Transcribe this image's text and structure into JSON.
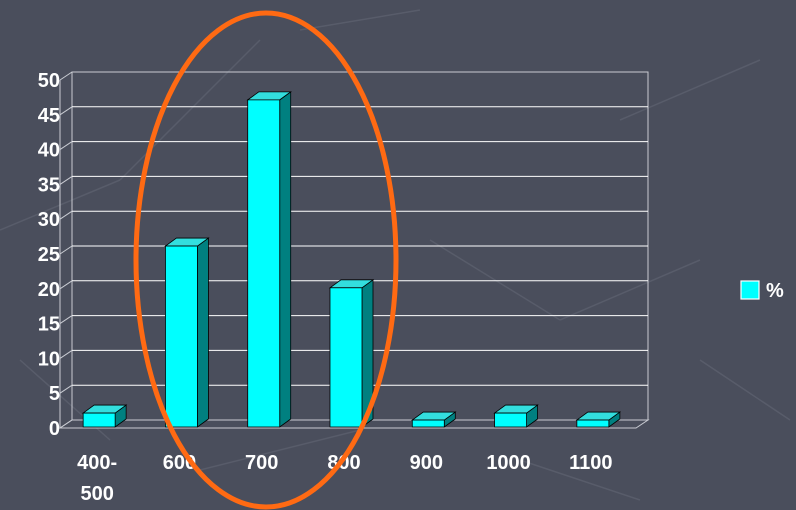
{
  "chart_data": {
    "type": "bar",
    "categories": [
      "400-500",
      "600",
      "700",
      "800",
      "900",
      "1000",
      "1100"
    ],
    "category_lines": [
      [
        "400-",
        "500"
      ],
      [
        "600"
      ],
      [
        "700"
      ],
      [
        "800"
      ],
      [
        "900"
      ],
      [
        "1000"
      ],
      [
        "1100"
      ]
    ],
    "series": [
      {
        "name": "%",
        "values": [
          2,
          26,
          47,
          20,
          1,
          2,
          1
        ]
      }
    ],
    "ylim": [
      0,
      50
    ],
    "yticks": [
      0,
      5,
      10,
      15,
      20,
      25,
      30,
      35,
      40,
      45,
      50
    ],
    "title": "",
    "xlabel": "",
    "ylabel": "",
    "grid": "horizontal",
    "legend": "right",
    "colors": {
      "background": "#4a4e5c",
      "bar_front": "#00ffff",
      "bar_top": "#33dede",
      "bar_side": "#008080",
      "gridline": "#ffffff",
      "highlight_ellipse": "#ff6a13"
    }
  }
}
